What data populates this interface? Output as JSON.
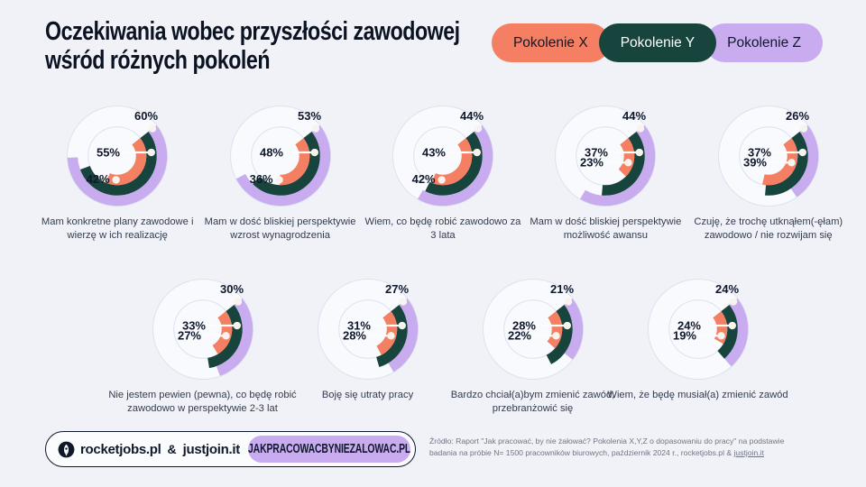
{
  "title": "Oczekiwania wobec przyszłości zawodowej\nwśród różnych pokoleń",
  "colors": {
    "background": "#F0F2F8",
    "pokolenie_x": "#F57F63",
    "pokolenie_y": "#17443C",
    "pokolenie_z": "#C9ACF0",
    "ring_outline": "#DCE2EE",
    "ring_track": "#F8FAFD",
    "label_text": "#10182B"
  },
  "legend": [
    {
      "label": "Pokolenie X",
      "color": "#F57F63",
      "text_color": "#10182B"
    },
    {
      "label": "Pokolenie Y",
      "color": "#17443C",
      "text_color": "#FFFFFF"
    },
    {
      "label": "Pokolenie Z",
      "color": "#C9ACF0",
      "text_color": "#10182B"
    }
  ],
  "chart_data": {
    "type": "donut-multi-ring",
    "rings_outer_to_inner": [
      "Pokolenie Z",
      "Pokolenie Y",
      "Pokolenie X"
    ],
    "unit": "%",
    "start_bearing_deg": 52,
    "charts": [
      {
        "caption": "Mam konkretne plany zawodowe i wierzę w ich realizację",
        "z": 60,
        "y": 55,
        "x": 42,
        "x_leader": "down"
      },
      {
        "caption": "Mam w dość bliskiej perspektywie wzrost wynagrodzenia",
        "z": 53,
        "y": 48,
        "x": 36,
        "x_leader": "down"
      },
      {
        "caption": "Wiem, co będę robić zawodowo za 3 lata",
        "z": 44,
        "y": 43,
        "x": 42,
        "x_leader": "down"
      },
      {
        "caption": "Mam w dość bliskiej perspektywie możliwość awansu",
        "z": 44,
        "y": 37,
        "x": 23,
        "x_leader": "right"
      },
      {
        "caption": "Czuję, że trochę utknąłem(-ęłam) zawodowo / nie rozwijam się",
        "z": 26,
        "y": 37,
        "x": 39,
        "x_leader": "right"
      },
      {
        "caption": "Nie jestem pewien (pewna), co będę robić zawodowo w perspektywie 2-3 lat",
        "z": 30,
        "y": 33,
        "x": 27,
        "x_leader": "right"
      },
      {
        "caption": "Boję się utraty pracy",
        "z": 27,
        "y": 31,
        "x": 28,
        "x_leader": "right"
      },
      {
        "caption": "Bardzo chciał(a)bym zmienić zawód, przebranżowić się",
        "z": 21,
        "y": 28,
        "x": 22,
        "x_leader": "right"
      },
      {
        "caption": "Wiem, że będę musiał(a) zmienić zawód",
        "z": 24,
        "y": 24,
        "x": 19,
        "x_leader": "right"
      }
    ]
  },
  "footer": {
    "brand_left": "rocketjobs.pl",
    "brand_amp": "&",
    "brand_right": "justjoin.it",
    "brand_pill": "JAKPRACOWACBYNIEZALOWAC.PL",
    "source_line": "Źródło: Raport \"Jak pracować, by nie żałować? Pokolenia X,Y,Z o dopasowaniu do pracy\" na podstawie badania na próbie N= 1500 pracowników biurowych, październik 2024 r., rocketjobs.pl & ",
    "source_link": "justjoin.it"
  }
}
